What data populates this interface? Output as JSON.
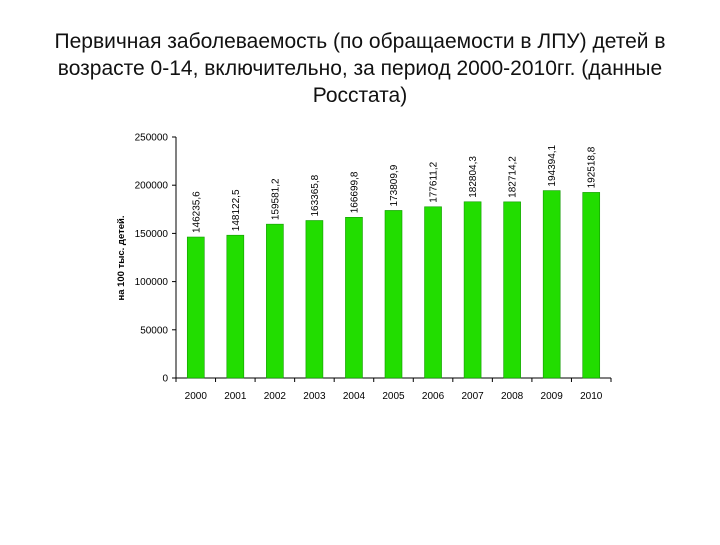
{
  "slide": {
    "title": "Первичная заболеваемость (по обращаемости в ЛПУ) детей в возрасте  0-14, включительно, за период 2000-2010гг. (данные Росстата)"
  },
  "chart_data": {
    "type": "bar",
    "categories": [
      "2000",
      "2001",
      "2002",
      "2003",
      "2004",
      "2005",
      "2006",
      "2007",
      "2008",
      "2009",
      "2010"
    ],
    "values": [
      146235.6,
      148122.5,
      159581.2,
      163365.8,
      166699.8,
      173809.9,
      177611.2,
      182804.3,
      182714.2,
      194394.1,
      192518.8
    ],
    "value_labels": [
      "146235,6",
      "148122,5",
      "159581,2",
      "163365,8",
      "166699,8",
      "173809,9",
      "177611,2",
      "182804,3",
      "182714,2",
      "194394,1",
      "192518,8"
    ],
    "title": "",
    "xlabel": "",
    "ylabel": "на 100 тыс. детей.",
    "ylim": [
      0,
      250000
    ],
    "yticks": [
      0,
      50000,
      100000,
      150000,
      200000,
      250000
    ],
    "grid": false,
    "legend": "none",
    "bar_color": "#22dd00",
    "bar_edge_color": "#119900"
  }
}
